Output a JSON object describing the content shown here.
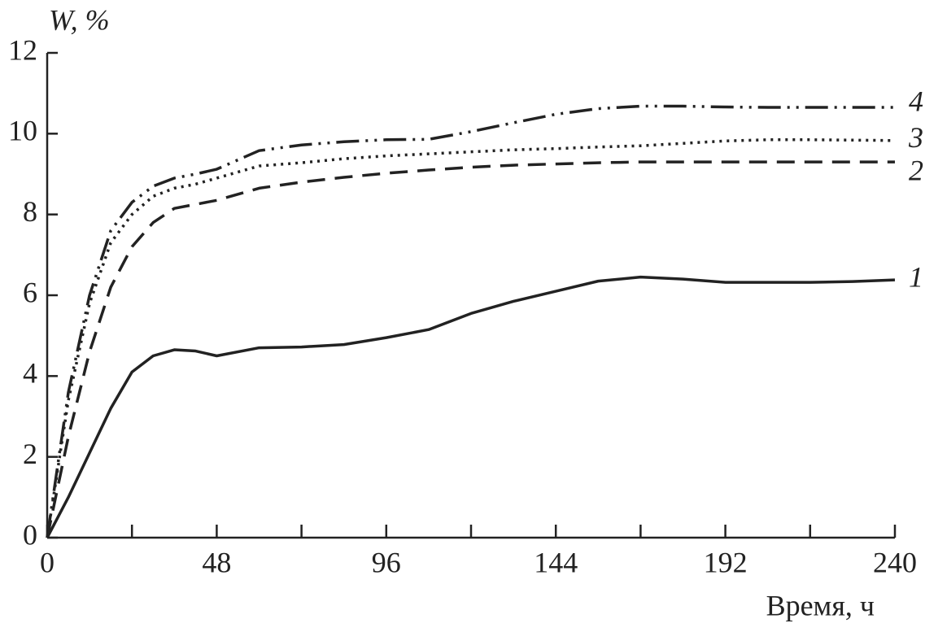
{
  "chart_data": {
    "type": "line",
    "y_label": "W, %",
    "x_label": "Время, ч",
    "x": [
      0,
      6,
      12,
      18,
      24,
      30,
      36,
      42,
      48,
      60,
      72,
      84,
      96,
      108,
      120,
      132,
      144,
      156,
      168,
      180,
      192,
      204,
      216,
      228,
      240
    ],
    "series": [
      {
        "name": "1",
        "color": "#222222",
        "dash": "solid",
        "values": [
          0,
          1.0,
          2.1,
          3.2,
          4.1,
          4.5,
          4.65,
          4.62,
          4.5,
          4.7,
          4.72,
          4.78,
          4.95,
          5.15,
          5.55,
          5.85,
          6.1,
          6.35,
          6.45,
          6.4,
          6.32,
          6.32,
          6.32,
          6.34,
          6.38
        ]
      },
      {
        "name": "2",
        "color": "#222222",
        "dash": "dashed",
        "values": [
          0,
          2.5,
          4.6,
          6.2,
          7.2,
          7.8,
          8.15,
          8.25,
          8.35,
          8.65,
          8.8,
          8.92,
          9.02,
          9.1,
          9.17,
          9.22,
          9.25,
          9.28,
          9.3,
          9.3,
          9.3,
          9.3,
          9.3,
          9.3,
          9.3
        ]
      },
      {
        "name": "3",
        "color": "#222222",
        "dash": "dotted",
        "values": [
          0,
          3.4,
          5.8,
          7.3,
          8.0,
          8.45,
          8.65,
          8.75,
          8.9,
          9.2,
          9.28,
          9.38,
          9.45,
          9.5,
          9.55,
          9.6,
          9.63,
          9.67,
          9.7,
          9.76,
          9.82,
          9.85,
          9.85,
          9.84,
          9.83
        ]
      },
      {
        "name": "4",
        "color": "#222222",
        "dash": "dash-dot-dot",
        "values": [
          0,
          3.6,
          6.0,
          7.6,
          8.3,
          8.7,
          8.9,
          9.0,
          9.12,
          9.58,
          9.72,
          9.8,
          9.85,
          9.86,
          10.05,
          10.27,
          10.48,
          10.62,
          10.68,
          10.68,
          10.66,
          10.65,
          10.65,
          10.65,
          10.65
        ]
      }
    ],
    "xlim": [
      0,
      240
    ],
    "xticks": [
      0,
      48,
      96,
      144,
      192,
      240
    ],
    "xminorticks": [
      24,
      72,
      120,
      168,
      216
    ],
    "ylim": [
      0,
      12
    ],
    "yticks": [
      0,
      2,
      4,
      6,
      8,
      10,
      12
    ],
    "grid": false
  }
}
